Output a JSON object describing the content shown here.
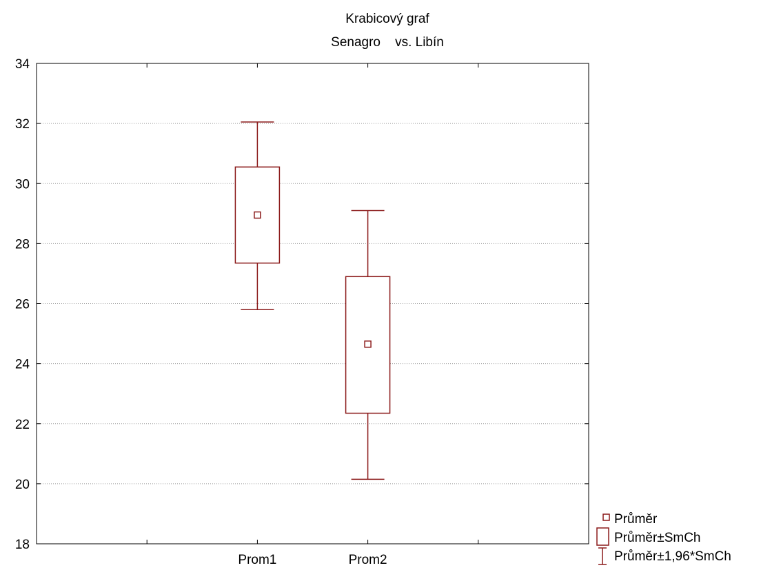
{
  "chart_data": {
    "type": "box",
    "title": "Krabicový graf",
    "subtitle": "Senagro    vs. Libín",
    "ylim": [
      18,
      34
    ],
    "yticks": [
      18,
      20,
      22,
      24,
      26,
      28,
      30,
      32,
      34
    ],
    "grid": true,
    "legend_placement": "bottom-right",
    "categories": [
      "Prom1",
      "Prom2"
    ],
    "boxes": [
      {
        "category": "Prom1",
        "mean": 28.95,
        "box_low": 27.35,
        "box_high": 30.55,
        "whisker_low": 25.8,
        "whisker_high": 32.05
      },
      {
        "category": "Prom2",
        "mean": 24.65,
        "box_low": 22.35,
        "box_high": 26.9,
        "whisker_low": 20.15,
        "whisker_high": 29.1
      }
    ],
    "legend": [
      {
        "symbol": "point",
        "label": "Průměr"
      },
      {
        "symbol": "box",
        "label": "Průměr±SmCh"
      },
      {
        "symbol": "whisker",
        "label": "Průměr±1,96*SmCh"
      }
    ],
    "color": "#8b1a1a"
  }
}
